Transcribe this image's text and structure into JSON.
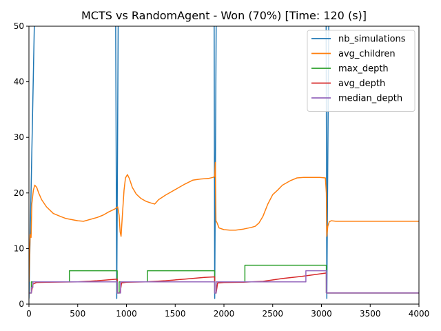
{
  "chart_data": {
    "type": "line",
    "title": "MCTS vs RandomAgent - Won (70%) [Time: 120 (s)]",
    "xlabel": "",
    "ylabel": "",
    "xlim": [
      0,
      4000
    ],
    "ylim": [
      0,
      50
    ],
    "xticks": [
      "0",
      "500",
      "1000",
      "1500",
      "2000",
      "2500",
      "3000",
      "3500",
      "4000"
    ],
    "yticks": [
      "0",
      "10",
      "20",
      "30",
      "40",
      "50"
    ],
    "grid": false,
    "legend_position": "top-right",
    "series": [
      {
        "name": "nb_simulations",
        "color": "#1f77b4",
        "points": [
          [
            0,
            1
          ],
          [
            55,
            50
          ],
          [
            null,
            null
          ],
          [
            890,
            50
          ],
          [
            900,
            1
          ],
          [
            915,
            50
          ],
          [
            null,
            null
          ],
          [
            945,
            50
          ],
          [
            960,
            60
          ],
          [
            null,
            null
          ],
          [
            1895,
            60
          ],
          [
            1900,
            50
          ],
          [
            1905,
            1
          ],
          [
            1920,
            50
          ],
          [
            null,
            null
          ],
          [
            1930,
            50
          ],
          [
            1945,
            60
          ],
          [
            null,
            null
          ],
          [
            3040,
            60
          ],
          [
            3048,
            50
          ],
          [
            3055,
            1
          ],
          [
            3075,
            50
          ],
          [
            null,
            null
          ],
          [
            3095,
            50
          ],
          [
            3110,
            60
          ]
        ]
      },
      {
        "name": "avg_children",
        "color": "#ff7f0e",
        "points": [
          [
            0,
            4
          ],
          [
            12,
            12.5
          ],
          [
            22,
            12
          ],
          [
            30,
            18
          ],
          [
            45,
            20.5
          ],
          [
            60,
            21.4
          ],
          [
            80,
            21
          ],
          [
            100,
            20
          ],
          [
            130,
            18.8
          ],
          [
            180,
            17.5
          ],
          [
            250,
            16.3
          ],
          [
            320,
            15.8
          ],
          [
            380,
            15.4
          ],
          [
            440,
            15.2
          ],
          [
            500,
            15
          ],
          [
            560,
            14.9
          ],
          [
            620,
            15.2
          ],
          [
            700,
            15.6
          ],
          [
            760,
            16
          ],
          [
            820,
            16.6
          ],
          [
            880,
            17.1
          ],
          [
            910,
            17.5
          ],
          [
            925,
            16
          ],
          [
            935,
            13
          ],
          [
            945,
            12.2
          ],
          [
            955,
            15
          ],
          [
            975,
            20.5
          ],
          [
            990,
            22.7
          ],
          [
            1010,
            23.3
          ],
          [
            1030,
            22.6
          ],
          [
            1060,
            21
          ],
          [
            1100,
            19.8
          ],
          [
            1150,
            19
          ],
          [
            1200,
            18.5
          ],
          [
            1250,
            18.2
          ],
          [
            1290,
            18
          ],
          [
            1330,
            18.8
          ],
          [
            1400,
            19.6
          ],
          [
            1470,
            20.3
          ],
          [
            1530,
            20.9
          ],
          [
            1600,
            21.6
          ],
          [
            1680,
            22.3
          ],
          [
            1760,
            22.5
          ],
          [
            1840,
            22.6
          ],
          [
            1890,
            22.8
          ],
          [
            1905,
            23
          ],
          [
            1912,
            25.5
          ],
          [
            1918,
            15
          ],
          [
            1930,
            14.6
          ],
          [
            1950,
            13.7
          ],
          [
            2000,
            13.4
          ],
          [
            2060,
            13.3
          ],
          [
            2120,
            13.3
          ],
          [
            2200,
            13.5
          ],
          [
            2280,
            13.8
          ],
          [
            2320,
            14
          ],
          [
            2360,
            14.6
          ],
          [
            2400,
            15.8
          ],
          [
            2450,
            18
          ],
          [
            2500,
            19.7
          ],
          [
            2550,
            20.5
          ],
          [
            2600,
            21.4
          ],
          [
            2680,
            22.2
          ],
          [
            2750,
            22.7
          ],
          [
            2820,
            22.8
          ],
          [
            2900,
            22.8
          ],
          [
            2980,
            22.8
          ],
          [
            3040,
            22.7
          ],
          [
            3050,
            20
          ],
          [
            3055,
            12.2
          ],
          [
            3065,
            14
          ],
          [
            3080,
            14.8
          ],
          [
            3100,
            15
          ],
          [
            3150,
            14.9
          ],
          [
            3300,
            14.9
          ],
          [
            3600,
            14.9
          ],
          [
            4000,
            14.9
          ]
        ]
      },
      {
        "name": "max_depth",
        "color": "#2ca02c",
        "points": [
          [
            0,
            2
          ],
          [
            25,
            2
          ],
          [
            25,
            4
          ],
          [
            415,
            4
          ],
          [
            415,
            6
          ],
          [
            905,
            6
          ],
          [
            905,
            2
          ],
          [
            925,
            2
          ],
          [
            925,
            4
          ],
          [
            1215,
            4
          ],
          [
            1215,
            6
          ],
          [
            1905,
            6
          ],
          [
            1905,
            2
          ],
          [
            1920,
            2
          ],
          [
            1920,
            4
          ],
          [
            2215,
            4
          ],
          [
            2215,
            7
          ],
          [
            3050,
            7
          ],
          [
            3050,
            2
          ],
          [
            4000,
            2
          ]
        ]
      },
      {
        "name": "avg_depth",
        "color": "#d62728",
        "points": [
          [
            0,
            2
          ],
          [
            25,
            2
          ],
          [
            40,
            3.6
          ],
          [
            80,
            3.9
          ],
          [
            200,
            3.95
          ],
          [
            500,
            4
          ],
          [
            700,
            4.2
          ],
          [
            905,
            4.5
          ],
          [
            906,
            2
          ],
          [
            935,
            2
          ],
          [
            950,
            3.8
          ],
          [
            1000,
            3.95
          ],
          [
            1200,
            4
          ],
          [
            1400,
            4.2
          ],
          [
            1600,
            4.5
          ],
          [
            1800,
            4.8
          ],
          [
            1905,
            4.9
          ],
          [
            1906,
            2
          ],
          [
            1920,
            2
          ],
          [
            1935,
            3.8
          ],
          [
            2000,
            3.9
          ],
          [
            2200,
            3.95
          ],
          [
            2400,
            4.1
          ],
          [
            2600,
            4.6
          ],
          [
            2800,
            5
          ],
          [
            3050,
            5.6
          ],
          [
            3051,
            2
          ],
          [
            4000,
            2
          ]
        ]
      },
      {
        "name": "median_depth",
        "color": "#9467bd",
        "points": [
          [
            0,
            2
          ],
          [
            25,
            2
          ],
          [
            25,
            3
          ],
          [
            40,
            3
          ],
          [
            40,
            4
          ],
          [
            905,
            4
          ],
          [
            905,
            2
          ],
          [
            940,
            2
          ],
          [
            940,
            4
          ],
          [
            1905,
            4
          ],
          [
            1905,
            2
          ],
          [
            1920,
            2
          ],
          [
            1920,
            4
          ],
          [
            2840,
            4
          ],
          [
            2840,
            6
          ],
          [
            3050,
            6
          ],
          [
            3050,
            2
          ],
          [
            4000,
            2
          ]
        ]
      }
    ]
  }
}
